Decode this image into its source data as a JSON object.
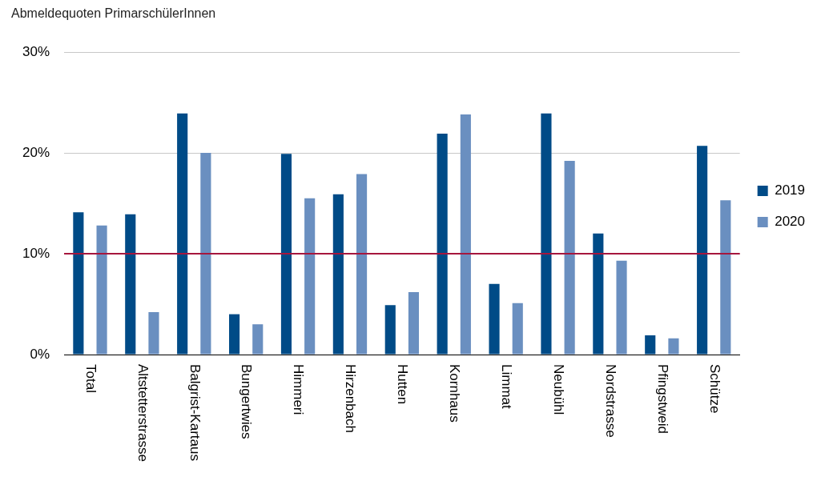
{
  "chart_data": {
    "type": "bar",
    "title": "Abmeldequoten PrimarschülerInnen",
    "categories": [
      "Total",
      "Altstetterstrasse",
      "Balgrist-Kartaus",
      "Bungertwies",
      "Himmeri",
      "Hirzenbach",
      "Hutten",
      "Kornhaus",
      "Limmat",
      "Neubühl",
      "Nordstrasse",
      "Pfingstweid",
      "Schütze"
    ],
    "series": [
      {
        "name": "2019",
        "color": "#004b87",
        "values": [
          14.1,
          13.9,
          23.9,
          4.0,
          19.9,
          15.9,
          4.9,
          21.9,
          7.0,
          23.9,
          12.0,
          1.9,
          20.7
        ]
      },
      {
        "name": "2020",
        "color": "#6a8fc0",
        "values": [
          12.8,
          4.2,
          20.0,
          3.0,
          15.5,
          17.9,
          6.2,
          23.8,
          5.1,
          19.2,
          9.3,
          1.6,
          15.3
        ]
      }
    ],
    "ylim": [
      0,
      30
    ],
    "yticks": [
      {
        "value": 0,
        "label": "0%"
      },
      {
        "value": 10,
        "label": "10%"
      },
      {
        "value": 20,
        "label": "20%"
      },
      {
        "value": 30,
        "label": "30%"
      }
    ],
    "grid": "y",
    "legend": "right",
    "ref_lines": [
      {
        "axis": "y",
        "value": 10,
        "color": "#a6163e"
      }
    ]
  }
}
